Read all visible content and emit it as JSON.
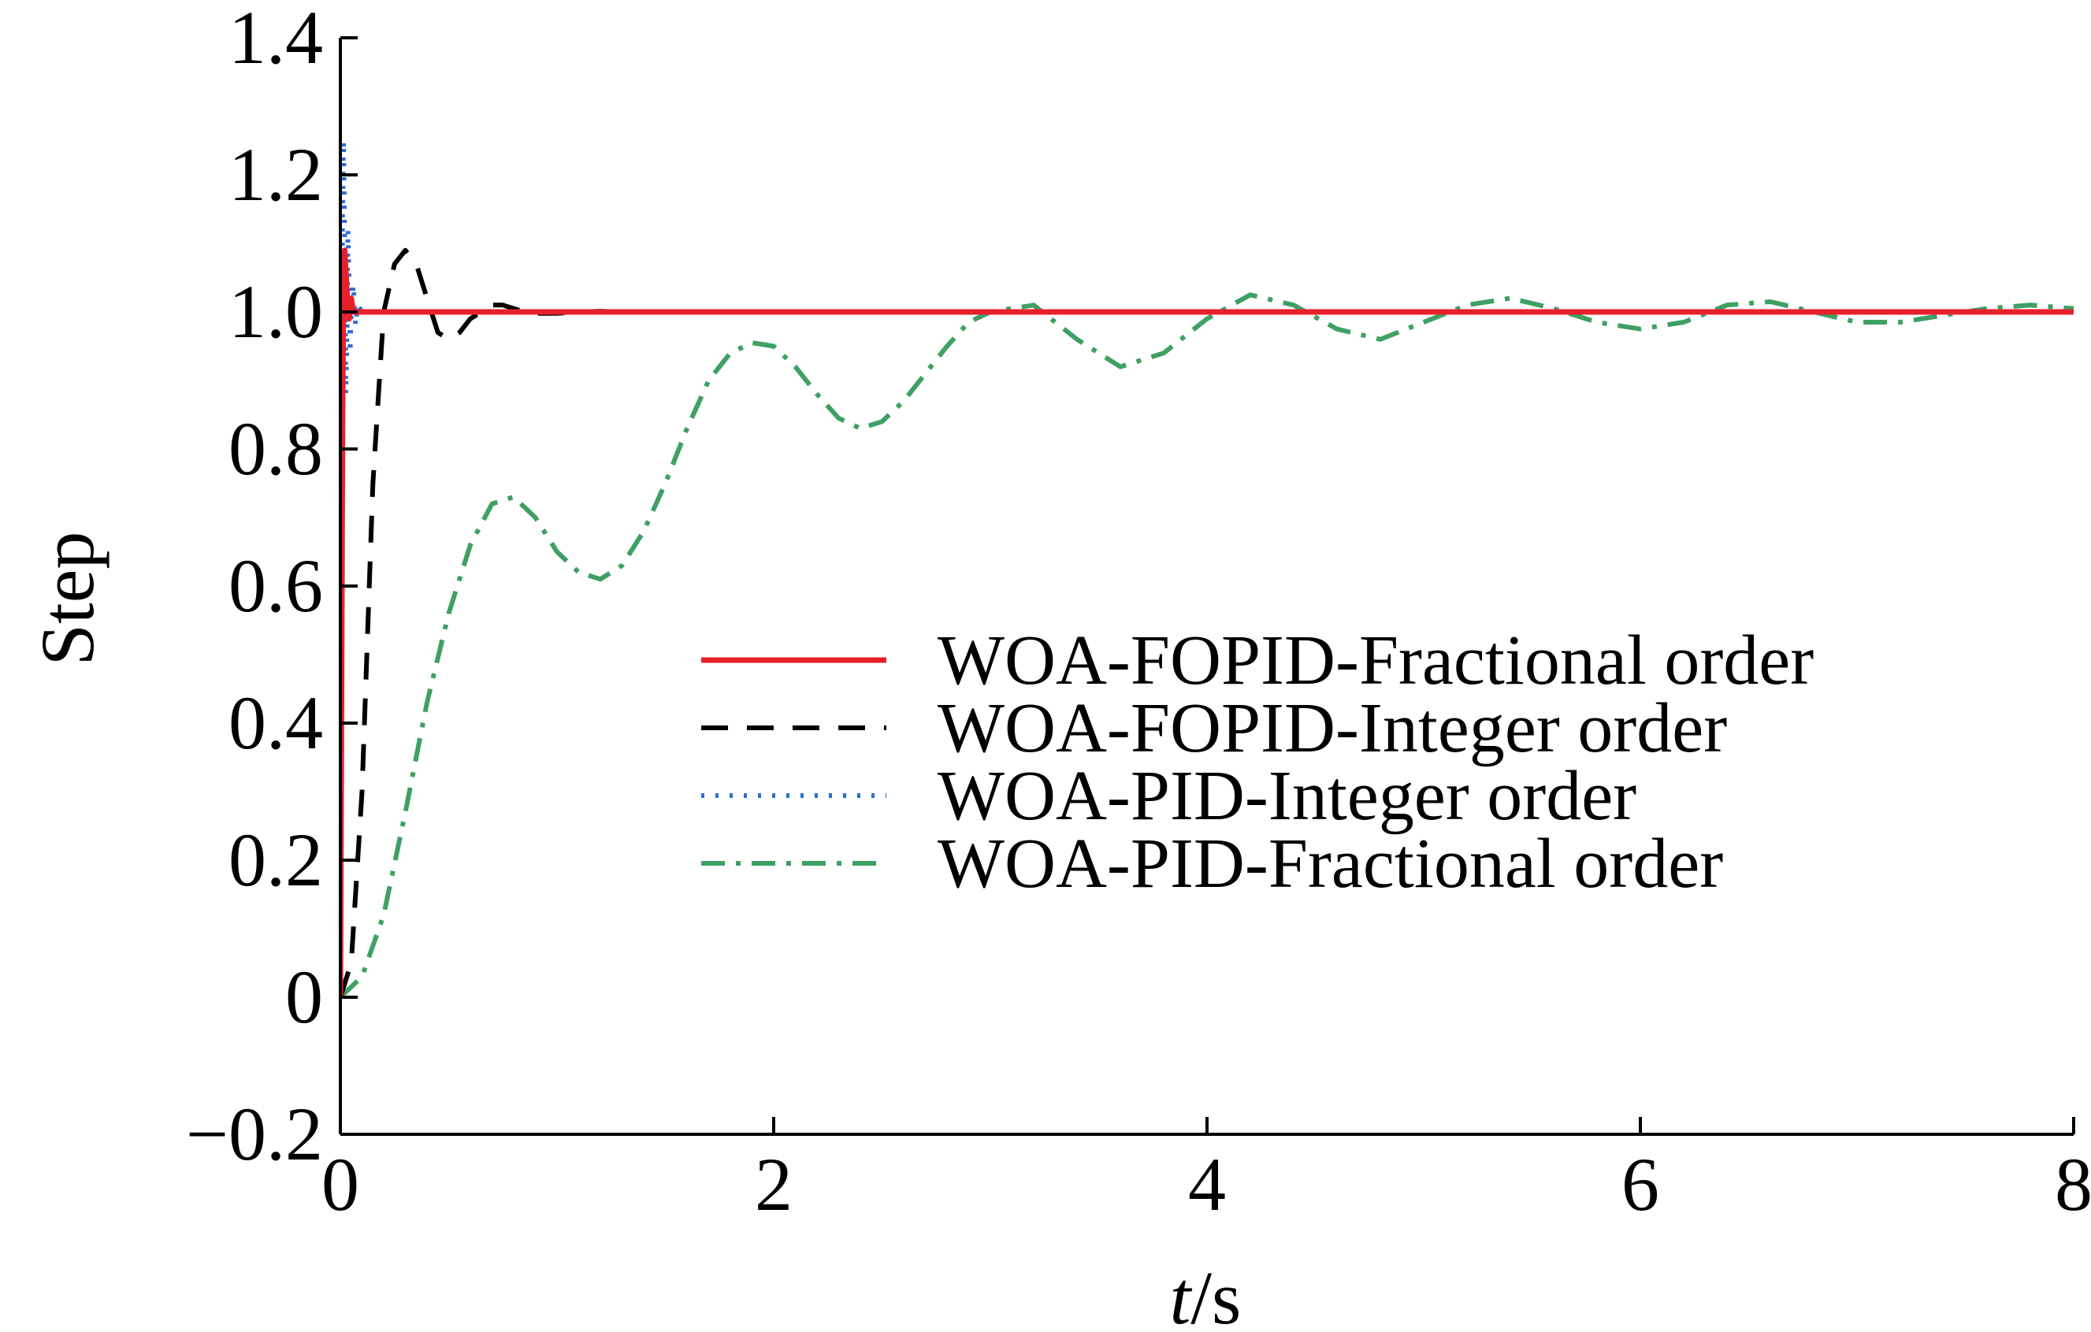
{
  "chart_data": {
    "type": "line",
    "title": "",
    "xlabel_italic": "t",
    "xlabel_rest": "/s",
    "ylabel": "Step",
    "xlim": [
      0,
      8
    ],
    "ylim": [
      -0.2,
      1.4
    ],
    "x_ticks": [
      0,
      2,
      4,
      6,
      8
    ],
    "x_tick_labels": [
      "0",
      "2",
      "4",
      "6",
      "8"
    ],
    "y_ticks": [
      -0.2,
      0,
      0.2,
      0.4,
      0.6,
      0.8,
      1.0,
      1.2,
      1.4
    ],
    "y_tick_labels": [
      "−0.2",
      "0",
      "0.2",
      "0.4",
      "0.6",
      "0.8",
      "1.0",
      "1.2",
      "1.4"
    ],
    "grid": false,
    "legend_position": "center-right",
    "series": [
      {
        "name": "WOA-FOPID-Fractional order",
        "color": "#e8202a",
        "style": "solid",
        "x": [
          0,
          0.005,
          0.01,
          0.015,
          0.02,
          0.03,
          0.04,
          0.05,
          0.06,
          0.08,
          0.1,
          8
        ],
        "y": [
          0,
          0.4,
          0.85,
          1.05,
          1.09,
          1.03,
          0.99,
          1.02,
          1.0,
          1.0,
          1.0,
          1.0
        ]
      },
      {
        "name": "WOA-FOPID-Integer order",
        "color": "#000000",
        "style": "dashed",
        "x": [
          0,
          0.05,
          0.1,
          0.15,
          0.2,
          0.25,
          0.3,
          0.35,
          0.4,
          0.45,
          0.5,
          0.55,
          0.6,
          0.65,
          0.7,
          0.75,
          0.8,
          0.85,
          0.9,
          1.0,
          1.1,
          1.2,
          1.3,
          1.4,
          1.6,
          2.0,
          8
        ],
        "y": [
          0,
          0.05,
          0.3,
          0.75,
          1.0,
          1.07,
          1.09,
          1.07,
          1.02,
          0.97,
          0.96,
          0.97,
          0.99,
          1.0,
          1.01,
          1.01,
          1.005,
          1.0,
          0.998,
          0.998,
          1.0,
          1.001,
          1.0,
          1.0,
          1.0,
          1.0,
          1.0
        ]
      },
      {
        "name": "WOA-PID-Integer order",
        "color": "#2e6fd0",
        "style": "dotted",
        "x": [
          0,
          0.005,
          0.01,
          0.015,
          0.02,
          0.025,
          0.03,
          0.035,
          0.04,
          0.045,
          0.05,
          0.06,
          0.07,
          0.08,
          0.1,
          0.12,
          8
        ],
        "y": [
          0,
          0.7,
          1.15,
          1.25,
          1.1,
          0.88,
          0.95,
          1.12,
          1.05,
          0.94,
          1.0,
          1.04,
          0.98,
          1.01,
          1.0,
          1.0,
          1.0
        ]
      },
      {
        "name": "WOA-PID-Fractional order",
        "color": "#3ea064",
        "style": "dashdot",
        "x": [
          0,
          0.1,
          0.2,
          0.3,
          0.4,
          0.5,
          0.6,
          0.7,
          0.8,
          0.9,
          1.0,
          1.1,
          1.2,
          1.3,
          1.4,
          1.5,
          1.6,
          1.7,
          1.8,
          1.9,
          2.0,
          2.1,
          2.2,
          2.3,
          2.4,
          2.5,
          2.6,
          2.7,
          2.8,
          2.9,
          3.0,
          3.2,
          3.4,
          3.6,
          3.8,
          4.0,
          4.2,
          4.4,
          4.6,
          4.8,
          5.0,
          5.2,
          5.4,
          5.6,
          5.8,
          6.0,
          6.2,
          6.4,
          6.6,
          6.8,
          7.0,
          7.2,
          7.4,
          7.6,
          7.8,
          8.0
        ],
        "y": [
          0,
          0.03,
          0.12,
          0.27,
          0.43,
          0.56,
          0.66,
          0.72,
          0.73,
          0.7,
          0.65,
          0.62,
          0.61,
          0.63,
          0.68,
          0.75,
          0.83,
          0.9,
          0.94,
          0.955,
          0.95,
          0.92,
          0.88,
          0.845,
          0.83,
          0.84,
          0.87,
          0.91,
          0.95,
          0.985,
          1.0,
          1.01,
          0.96,
          0.92,
          0.94,
          0.99,
          1.025,
          1.01,
          0.975,
          0.96,
          0.985,
          1.01,
          1.02,
          1.005,
          0.985,
          0.975,
          0.985,
          1.01,
          1.015,
          1.0,
          0.985,
          0.985,
          0.995,
          1.005,
          1.01,
          1.005
        ]
      }
    ]
  }
}
